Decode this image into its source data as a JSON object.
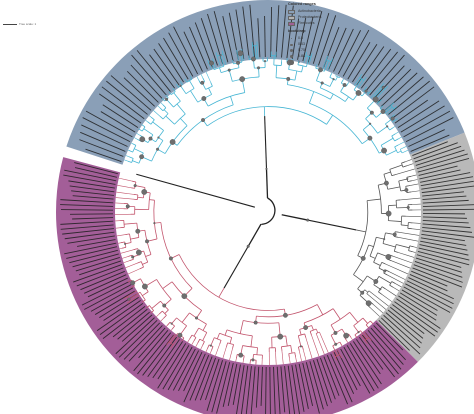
{
  "scale_bar": {
    "label": "Tree scale: 1"
  },
  "legend": {
    "colored_ranges_title": "Colored ranges",
    "ranges": [
      {
        "label": "Actinobacteria",
        "color": "#8a9fb7"
      },
      {
        "label": "Proteobacteria",
        "color": "#b4b4b4"
      },
      {
        "label": "Firmicutes",
        "color": "#a05f95"
      }
    ],
    "bootstrap_title": "bootstrap",
    "bootstrap_values": [
      "0.5",
      "0.63",
      "0.75",
      "0.88",
      "1"
    ]
  },
  "colors": {
    "actinobacteria_range": "#8a9fb7",
    "proteobacteria_range": "#b9b9b9",
    "firmicutes_range": "#a35e98",
    "actinobacteria_branch": "#47b6d4",
    "firmicutes_branch": "#c2546c",
    "proteobacteria_branch": "#555555",
    "backbone": "#222222",
    "bootstrap_node": "#6e6e6e"
  },
  "tree": {
    "type": "circular-phylogeny",
    "leaf_count_actinobacteria": 70,
    "leaf_count_proteobacteria": 52,
    "leaf_count_firmicutes": 110
  }
}
